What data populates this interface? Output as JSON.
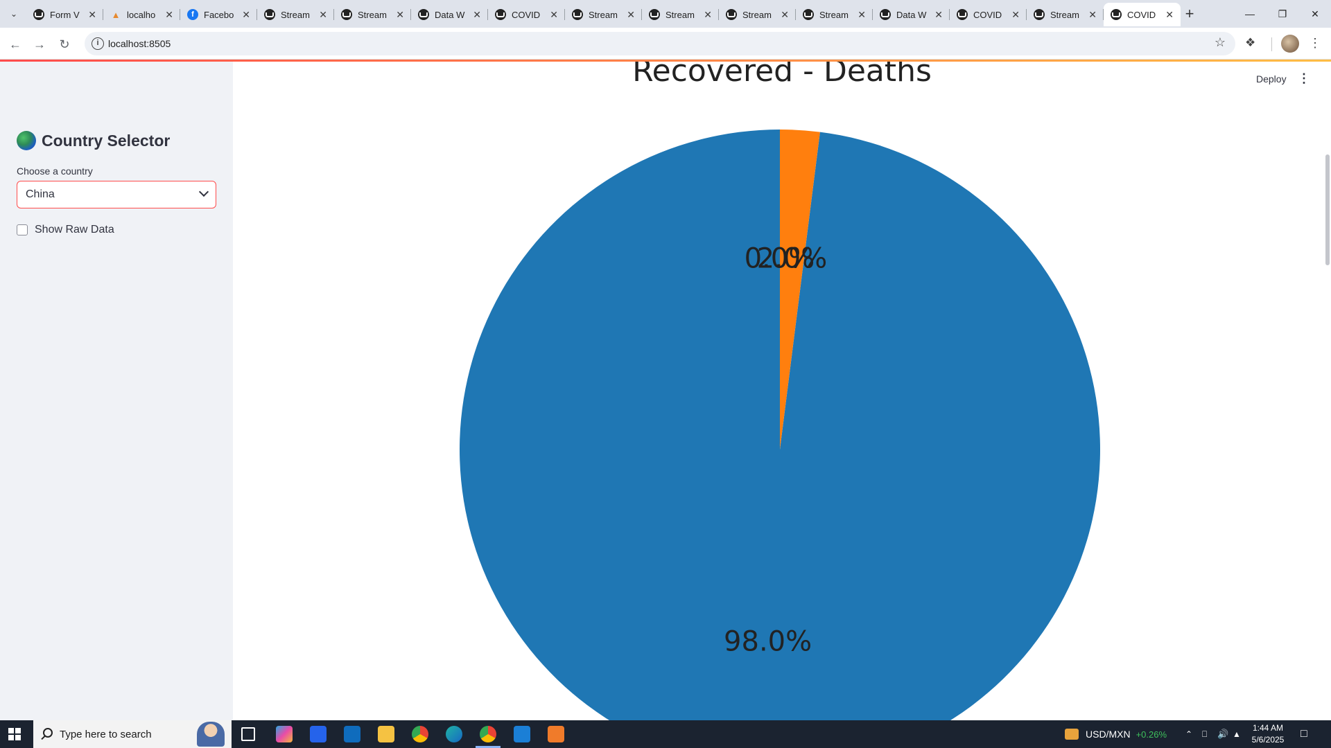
{
  "browser": {
    "tabs": [
      {
        "title": "Form V",
        "icon": "github-icon"
      },
      {
        "title": "localho",
        "icon": "xampp-icon"
      },
      {
        "title": "Facebo",
        "icon": "facebook-icon"
      },
      {
        "title": "Stream",
        "icon": "streamlit-icon"
      },
      {
        "title": "Stream",
        "icon": "streamlit-icon"
      },
      {
        "title": "Data W",
        "icon": "streamlit-icon"
      },
      {
        "title": "COVID",
        "icon": "streamlit-icon"
      },
      {
        "title": "Stream",
        "icon": "streamlit-icon"
      },
      {
        "title": "Stream",
        "icon": "streamlit-icon"
      },
      {
        "title": "Stream",
        "icon": "streamlit-icon"
      },
      {
        "title": "Stream",
        "icon": "streamlit-icon"
      },
      {
        "title": "Data W",
        "icon": "streamlit-icon"
      },
      {
        "title": "COVID",
        "icon": "streamlit-icon"
      },
      {
        "title": "Stream",
        "icon": "streamlit-icon"
      },
      {
        "title": "COVID",
        "icon": "streamlit-icon",
        "active": true
      }
    ],
    "url": "localhost:8505"
  },
  "sidebar": {
    "title": "Country Selector",
    "select_label": "Choose a country",
    "selected_country": "China",
    "checkbox_label": "Show Raw Data",
    "checkbox_checked": false
  },
  "header": {
    "deploy_label": "Deploy"
  },
  "chart_data": {
    "type": "pie",
    "title": "Recovered - Deaths",
    "slices": [
      {
        "label": "Recovered",
        "value": 98.0,
        "color": "#1f77b4",
        "display": "98.0%"
      },
      {
        "label": "Deaths",
        "value": 2.0,
        "color": "#ff7f0e",
        "display": "2.0%"
      }
    ],
    "overlap_label": "0.0%",
    "start_angle_deg": 90,
    "direction": "counterclockwise"
  },
  "taskbar": {
    "search_placeholder": "Type here to search",
    "ticker": "USD/MXN",
    "ticker_change": "+0.26%",
    "time": "1:44 AM",
    "date": "5/6/2025"
  },
  "colors": {
    "accent": "#ff4b4b",
    "sidebar_bg": "#f0f2f6",
    "ticker_positive": "#3ec05b"
  }
}
